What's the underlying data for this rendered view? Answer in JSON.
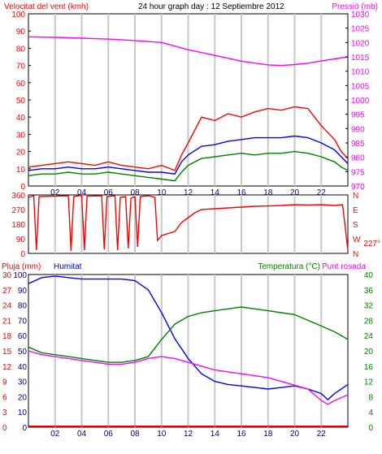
{
  "chart_data": [
    {
      "type": "line",
      "title": "24 hour graph day : 12 Septiembre 2012",
      "left_label": "Velocitat del vent (kmh)",
      "right_label": "Pressió (mb)",
      "x_ticks": [
        "02",
        "04",
        "06",
        "08",
        "10",
        "12",
        "14",
        "16",
        "18",
        "20",
        "22"
      ],
      "x_range": [
        0,
        24
      ],
      "y_left_ticks": [
        0,
        10,
        20,
        30,
        40,
        50,
        60,
        70,
        80,
        90,
        100
      ],
      "y_left_range": [
        0,
        100
      ],
      "y_right_ticks": [
        970,
        975,
        980,
        985,
        990,
        995,
        1000,
        1005,
        1010,
        1015,
        1020,
        1025,
        1030
      ],
      "y_right_range": [
        970,
        1030
      ],
      "grid": true,
      "series": [
        {
          "axis": "left",
          "color": "#ff0000",
          "points": [
            [
              0,
              11
            ],
            [
              1,
              12
            ],
            [
              2,
              13
            ],
            [
              3,
              14
            ],
            [
              4,
              13
            ],
            [
              5,
              12
            ],
            [
              6,
              14
            ],
            [
              7,
              12
            ],
            [
              8,
              11
            ],
            [
              9,
              10
            ],
            [
              10,
              12
            ],
            [
              11,
              9
            ],
            [
              11.5,
              18
            ],
            [
              12,
              25
            ],
            [
              13,
              40
            ],
            [
              14,
              38
            ],
            [
              15,
              42
            ],
            [
              16,
              40
            ],
            [
              17,
              43
            ],
            [
              18,
              45
            ],
            [
              19,
              44
            ],
            [
              20,
              46
            ],
            [
              21,
              45
            ],
            [
              22,
              35
            ],
            [
              23,
              27
            ],
            [
              23.5,
              20
            ],
            [
              24,
              16
            ]
          ]
        },
        {
          "axis": "left",
          "color": "#0000ff",
          "points": [
            [
              0,
              9
            ],
            [
              1,
              10
            ],
            [
              2,
              10
            ],
            [
              3,
              11
            ],
            [
              4,
              10
            ],
            [
              5,
              10
            ],
            [
              6,
              11
            ],
            [
              7,
              10
            ],
            [
              8,
              9
            ],
            [
              9,
              8
            ],
            [
              10,
              8
            ],
            [
              11,
              7
            ],
            [
              11.5,
              14
            ],
            [
              12,
              18
            ],
            [
              13,
              23
            ],
            [
              14,
              24
            ],
            [
              15,
              26
            ],
            [
              16,
              27
            ],
            [
              17,
              28
            ],
            [
              18,
              28
            ],
            [
              19,
              28
            ],
            [
              20,
              29
            ],
            [
              21,
              28
            ],
            [
              22,
              25
            ],
            [
              23,
              21
            ],
            [
              23.5,
              17
            ],
            [
              24,
              13
            ]
          ]
        },
        {
          "axis": "left",
          "color": "#008000",
          "points": [
            [
              0,
              6
            ],
            [
              1,
              7
            ],
            [
              2,
              7
            ],
            [
              3,
              8
            ],
            [
              4,
              7
            ],
            [
              5,
              7
            ],
            [
              6,
              8
            ],
            [
              7,
              7
            ],
            [
              8,
              6
            ],
            [
              9,
              5
            ],
            [
              10,
              4
            ],
            [
              11,
              3
            ],
            [
              11.5,
              8
            ],
            [
              12,
              12
            ],
            [
              13,
              16
            ],
            [
              14,
              17
            ],
            [
              15,
              18
            ],
            [
              16,
              19
            ],
            [
              17,
              18
            ],
            [
              18,
              19
            ],
            [
              19,
              19
            ],
            [
              20,
              20
            ],
            [
              21,
              19
            ],
            [
              22,
              17
            ],
            [
              23,
              14
            ],
            [
              23.5,
              11
            ],
            [
              24,
              9
            ]
          ]
        },
        {
          "axis": "right",
          "color": "#ff00ff",
          "points": [
            [
              0,
              1022
            ],
            [
              2,
              1021.8
            ],
            [
              4,
              1021.5
            ],
            [
              6,
              1021.2
            ],
            [
              8,
              1020.7
            ],
            [
              10,
              1020
            ],
            [
              12,
              1017.5
            ],
            [
              14,
              1015.5
            ],
            [
              16,
              1013.5
            ],
            [
              18,
              1012.2
            ],
            [
              19,
              1012
            ],
            [
              20,
              1012.3
            ],
            [
              21,
              1012.8
            ],
            [
              22,
              1013.6
            ],
            [
              23,
              1014.3
            ],
            [
              24,
              1015
            ]
          ]
        }
      ]
    },
    {
      "type": "line",
      "y_left_ticks": [
        0,
        90,
        180,
        270,
        360
      ],
      "y_left_range": [
        0,
        360
      ],
      "y_right_ticks": [
        "N",
        "W",
        "S",
        "E",
        "N"
      ],
      "current_value": "227°",
      "x_range": [
        0,
        24
      ],
      "grid": true,
      "series": [
        {
          "color": "#ff0000",
          "points": [
            [
              0,
              345
            ],
            [
              0.4,
              355
            ],
            [
              0.6,
              20
            ],
            [
              0.8,
              350
            ],
            [
              3,
              355
            ],
            [
              3.2,
              15
            ],
            [
              3.4,
              350
            ],
            [
              4,
              358
            ],
            [
              4.2,
              20
            ],
            [
              4.4,
              352
            ],
            [
              5.5,
              355
            ],
            [
              5.7,
              25
            ],
            [
              5.9,
              350
            ],
            [
              6.5,
              355
            ],
            [
              6.7,
              20
            ],
            [
              6.9,
              345
            ],
            [
              7.3,
              350
            ],
            [
              7.5,
              30
            ],
            [
              7.7,
              340
            ],
            [
              8,
              350
            ],
            [
              8.2,
              40
            ],
            [
              8.4,
              350
            ],
            [
              9,
              355
            ],
            [
              9.5,
              345
            ],
            [
              9.7,
              80
            ],
            [
              10,
              110
            ],
            [
              11,
              135
            ],
            [
              11.5,
              190
            ],
            [
              12,
              220
            ],
            [
              12.5,
              250
            ],
            [
              13,
              270
            ],
            [
              14,
              275
            ],
            [
              15,
              280
            ],
            [
              16,
              285
            ],
            [
              17,
              290
            ],
            [
              18,
              292
            ],
            [
              19,
              295
            ],
            [
              20,
              300
            ],
            [
              21,
              298
            ],
            [
              22,
              300
            ],
            [
              23,
              295
            ],
            [
              23.6,
              300
            ],
            [
              24,
              20
            ]
          ]
        }
      ]
    },
    {
      "type": "line",
      "left_label_1": "Pluja (mm)",
      "left_label_2": "Humitat",
      "right_label_1": "Temperatura (°C)",
      "right_label_2": "Punt rosada",
      "x_ticks": [
        "02",
        "04",
        "06",
        "08",
        "10",
        "12",
        "14",
        "16",
        "18",
        "20",
        "22"
      ],
      "x_range": [
        0,
        24
      ],
      "y_humidity_ticks": [
        0,
        10,
        20,
        30,
        40,
        50,
        60,
        70,
        80,
        90,
        100
      ],
      "y_humidity_range": [
        0,
        100
      ],
      "y_rain_ticks": [
        0,
        3,
        6,
        9,
        12,
        15,
        18,
        21,
        24,
        27,
        30
      ],
      "y_rain_range": [
        0,
        30
      ],
      "y_temp_ticks": [
        0,
        4,
        8,
        12,
        16,
        20,
        24,
        28,
        32,
        36,
        40
      ],
      "y_temp_range": [
        0,
        40
      ],
      "grid": true,
      "series": [
        {
          "name": "Humitat",
          "axis": "humidity",
          "color": "#0000ff",
          "points": [
            [
              0,
              94
            ],
            [
              0.5,
              96
            ],
            [
              1,
              98
            ],
            [
              2,
              99
            ],
            [
              3,
              98
            ],
            [
              4,
              97
            ],
            [
              5,
              97
            ],
            [
              6,
              97
            ],
            [
              7,
              97
            ],
            [
              8,
              96
            ],
            [
              9,
              90
            ],
            [
              10,
              75
            ],
            [
              11,
              58
            ],
            [
              12,
              45
            ],
            [
              13,
              35
            ],
            [
              14,
              30
            ],
            [
              15,
              28
            ],
            [
              16,
              27
            ],
            [
              17,
              26
            ],
            [
              18,
              25
            ],
            [
              19,
              26
            ],
            [
              20,
              27
            ],
            [
              21,
              25
            ],
            [
              22,
              22
            ],
            [
              22.5,
              18
            ],
            [
              23,
              22
            ],
            [
              24,
              28
            ]
          ]
        },
        {
          "name": "Temperatura (°C)",
          "axis": "temp",
          "color": "#008000",
          "points": [
            [
              0,
              21
            ],
            [
              1,
              19.5
            ],
            [
              2,
              19
            ],
            [
              3,
              18.5
            ],
            [
              4,
              18
            ],
            [
              5,
              17.5
            ],
            [
              6,
              17
            ],
            [
              7,
              17
            ],
            [
              8,
              17.5
            ],
            [
              9,
              18.5
            ],
            [
              10,
              23
            ],
            [
              11,
              27
            ],
            [
              12,
              29
            ],
            [
              13,
              30
            ],
            [
              14,
              30.5
            ],
            [
              15,
              31
            ],
            [
              16,
              31.5
            ],
            [
              17,
              31
            ],
            [
              18,
              30.5
            ],
            [
              19,
              30
            ],
            [
              20,
              29.5
            ],
            [
              21,
              28
            ],
            [
              22,
              26.5
            ],
            [
              23,
              25
            ],
            [
              24,
              23
            ]
          ]
        },
        {
          "name": "Punt rosada",
          "axis": "temp",
          "color": "#ff00ff",
          "points": [
            [
              0,
              20
            ],
            [
              1,
              19
            ],
            [
              2,
              18.5
            ],
            [
              3,
              18
            ],
            [
              4,
              17.5
            ],
            [
              5,
              17
            ],
            [
              6,
              16.5
            ],
            [
              7,
              16.5
            ],
            [
              8,
              17
            ],
            [
              9,
              18
            ],
            [
              10,
              18.5
            ],
            [
              11,
              18
            ],
            [
              12,
              17
            ],
            [
              13,
              16
            ],
            [
              14,
              15
            ],
            [
              15,
              14.5
            ],
            [
              16,
              14
            ],
            [
              17,
              13.5
            ],
            [
              18,
              13
            ],
            [
              19,
              12
            ],
            [
              20,
              11
            ],
            [
              21,
              10
            ],
            [
              21.5,
              8.5
            ],
            [
              22,
              7
            ],
            [
              22.5,
              6
            ],
            [
              23,
              7
            ],
            [
              24,
              8.5
            ]
          ]
        },
        {
          "name": "Pluja (mm)",
          "axis": "rain",
          "color": "#ff0000",
          "points": [
            [
              0,
              0.2
            ],
            [
              24,
              0.2
            ]
          ]
        }
      ]
    }
  ],
  "colors": {
    "frame": "#000000",
    "grid": "#c8c8c8",
    "background": "#ffffff"
  }
}
